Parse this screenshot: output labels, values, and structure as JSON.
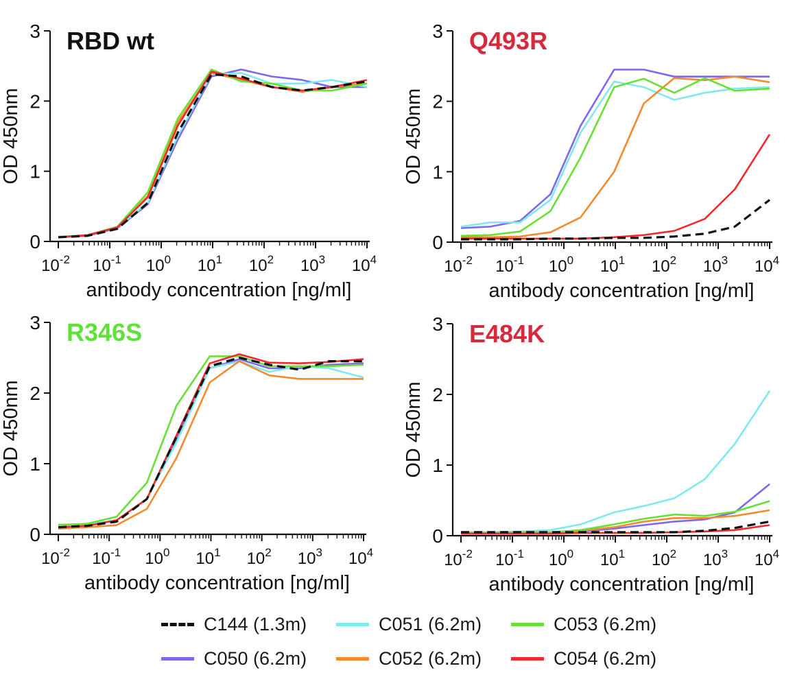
{
  "chart_data": [
    {
      "type": "line",
      "title": "RBD wt",
      "title_color": "#111111",
      "xlabel": "antibody concentration [ng/ml]",
      "ylabel": "OD 450nm",
      "x_scale": "log",
      "xlim_exp": [
        -2,
        4
      ],
      "ylim": [
        0,
        3
      ],
      "y_ticks": [
        "0",
        "1",
        "2",
        "3"
      ],
      "x_tick_labels": [
        {
          "base": "10",
          "exp": "-2"
        },
        {
          "base": "10",
          "exp": "-1"
        },
        {
          "base": "10",
          "exp": "0"
        },
        {
          "base": "10",
          "exp": "1"
        },
        {
          "base": "10",
          "exp": "2"
        },
        {
          "base": "10",
          "exp": "3"
        },
        {
          "base": "10",
          "exp": "4"
        }
      ],
      "x": [
        0.01,
        0.037,
        0.14,
        0.55,
        2.1,
        9.5,
        36,
        140,
        550,
        2100,
        10000
      ],
      "series": [
        {
          "name": "C050 (6.2m)",
          "values": [
            0.06,
            0.08,
            0.19,
            0.53,
            1.45,
            2.35,
            2.45,
            2.35,
            2.3,
            2.2,
            2.2
          ]
        },
        {
          "name": "C051 (6.2m)",
          "values": [
            0.07,
            0.09,
            0.2,
            0.55,
            1.5,
            2.38,
            2.4,
            2.25,
            2.25,
            2.3,
            2.2
          ]
        },
        {
          "name": "C052 (6.2m)",
          "values": [
            0.06,
            0.09,
            0.2,
            0.65,
            1.7,
            2.4,
            2.3,
            2.2,
            2.13,
            2.2,
            2.25
          ]
        },
        {
          "name": "C053 (6.2m)",
          "values": [
            0.06,
            0.09,
            0.21,
            0.7,
            1.75,
            2.45,
            2.28,
            2.25,
            2.15,
            2.15,
            2.25
          ]
        },
        {
          "name": "C054 (6.2m)",
          "values": [
            0.06,
            0.09,
            0.2,
            0.63,
            1.65,
            2.42,
            2.32,
            2.2,
            2.15,
            2.2,
            2.3
          ]
        },
        {
          "name": "C144 (1.3m)",
          "values": [
            0.06,
            0.08,
            0.18,
            0.55,
            1.55,
            2.38,
            2.35,
            2.2,
            2.15,
            2.2,
            2.28
          ]
        }
      ]
    },
    {
      "type": "line",
      "title": "Q493R",
      "title_color": "#d42a3c",
      "xlabel": "antibody concentration [ng/ml]",
      "ylabel": "OD 450nm",
      "x_scale": "log",
      "xlim_exp": [
        -2,
        4
      ],
      "ylim": [
        0,
        3
      ],
      "y_ticks": [
        "0",
        "1",
        "2",
        "3"
      ],
      "x_tick_labels": [
        {
          "base": "10",
          "exp": "-2"
        },
        {
          "base": "10",
          "exp": "-1"
        },
        {
          "base": "10",
          "exp": "0"
        },
        {
          "base": "10",
          "exp": "1"
        },
        {
          "base": "10",
          "exp": "2"
        },
        {
          "base": "10",
          "exp": "3"
        },
        {
          "base": "10",
          "exp": "4"
        }
      ],
      "x": [
        0.01,
        0.037,
        0.14,
        0.55,
        2.1,
        9.5,
        36,
        140,
        550,
        2100,
        10000
      ],
      "series": [
        {
          "name": "C050 (6.2m)",
          "values": [
            0.2,
            0.22,
            0.3,
            0.68,
            1.65,
            2.45,
            2.45,
            2.35,
            2.35,
            2.35,
            2.35
          ]
        },
        {
          "name": "C051 (6.2m)",
          "values": [
            0.22,
            0.28,
            0.28,
            0.6,
            1.55,
            2.28,
            2.2,
            2.02,
            2.12,
            2.18,
            2.2
          ]
        },
        {
          "name": "C052 (6.2m)",
          "values": [
            0.07,
            0.07,
            0.08,
            0.14,
            0.35,
            1.0,
            1.97,
            2.33,
            2.3,
            2.35,
            2.27
          ]
        },
        {
          "name": "C053 (6.2m)",
          "values": [
            0.09,
            0.1,
            0.15,
            0.44,
            1.2,
            2.2,
            2.32,
            2.12,
            2.33,
            2.15,
            2.18
          ]
        },
        {
          "name": "C054 (6.2m)",
          "values": [
            0.05,
            0.05,
            0.05,
            0.05,
            0.05,
            0.07,
            0.1,
            0.16,
            0.33,
            0.75,
            1.53
          ]
        },
        {
          "name": "C144 (1.3m)",
          "values": [
            0.04,
            0.04,
            0.04,
            0.05,
            0.05,
            0.06,
            0.06,
            0.08,
            0.12,
            0.22,
            0.6
          ]
        }
      ]
    },
    {
      "type": "line",
      "title": "R346S",
      "title_color": "#5ee23a",
      "xlabel": "antibody concentration [ng/ml]",
      "ylabel": "OD 450nm",
      "x_scale": "log",
      "xlim_exp": [
        -2,
        4
      ],
      "ylim": [
        0,
        3
      ],
      "y_ticks": [
        "0",
        "1",
        "2",
        "3"
      ],
      "x_tick_labels": [
        {
          "base": "10",
          "exp": "-2"
        },
        {
          "base": "10",
          "exp": "-1"
        },
        {
          "base": "10",
          "exp": "0"
        },
        {
          "base": "10",
          "exp": "1"
        },
        {
          "base": "10",
          "exp": "2"
        },
        {
          "base": "10",
          "exp": "3"
        },
        {
          "base": "10",
          "exp": "4"
        }
      ],
      "x": [
        0.01,
        0.037,
        0.14,
        0.55,
        2.1,
        9.5,
        36,
        140,
        550,
        2100,
        10000
      ],
      "series": [
        {
          "name": "C050 (6.2m)",
          "values": [
            0.1,
            0.12,
            0.2,
            0.5,
            1.35,
            2.35,
            2.48,
            2.35,
            2.35,
            2.4,
            2.42
          ]
        },
        {
          "name": "C051 (6.2m)",
          "values": [
            0.14,
            0.14,
            0.2,
            0.5,
            1.3,
            2.35,
            2.45,
            2.3,
            2.38,
            2.35,
            2.22
          ]
        },
        {
          "name": "C052 (6.2m)",
          "values": [
            0.08,
            0.1,
            0.13,
            0.36,
            1.08,
            2.15,
            2.45,
            2.25,
            2.2,
            2.2,
            2.2
          ]
        },
        {
          "name": "C053 (6.2m)",
          "values": [
            0.13,
            0.15,
            0.25,
            0.73,
            1.82,
            2.52,
            2.52,
            2.38,
            2.38,
            2.38,
            2.4
          ]
        },
        {
          "name": "C054 (6.2m)",
          "values": [
            0.1,
            0.12,
            0.2,
            0.5,
            1.4,
            2.42,
            2.55,
            2.43,
            2.42,
            2.44,
            2.48
          ]
        },
        {
          "name": "C144 (1.3m)",
          "values": [
            0.1,
            0.12,
            0.18,
            0.5,
            1.38,
            2.38,
            2.5,
            2.4,
            2.33,
            2.45,
            2.45
          ]
        }
      ]
    },
    {
      "type": "line",
      "title": "E484K",
      "title_color": "#d42a3c",
      "xlabel": "antibody concentration [ng/ml]",
      "ylabel": "OD 450nm",
      "x_scale": "log",
      "xlim_exp": [
        -2,
        4
      ],
      "ylim": [
        0,
        3
      ],
      "y_ticks": [
        "0",
        "1",
        "2",
        "3"
      ],
      "x_tick_labels": [
        {
          "base": "10",
          "exp": "-2"
        },
        {
          "base": "10",
          "exp": "-1"
        },
        {
          "base": "10",
          "exp": "0"
        },
        {
          "base": "10",
          "exp": "1"
        },
        {
          "base": "10",
          "exp": "2"
        },
        {
          "base": "10",
          "exp": "3"
        },
        {
          "base": "10",
          "exp": "4"
        }
      ],
      "x": [
        0.01,
        0.037,
        0.14,
        0.55,
        2.1,
        9.5,
        36,
        140,
        550,
        2100,
        10000
      ],
      "series": [
        {
          "name": "C050 (6.2m)",
          "values": [
            0.05,
            0.05,
            0.05,
            0.05,
            0.06,
            0.1,
            0.15,
            0.2,
            0.23,
            0.33,
            0.73
          ]
        },
        {
          "name": "C051 (6.2m)",
          "values": [
            0.05,
            0.05,
            0.06,
            0.08,
            0.16,
            0.33,
            0.42,
            0.53,
            0.8,
            1.3,
            2.05
          ]
        },
        {
          "name": "C052 (6.2m)",
          "values": [
            0.04,
            0.04,
            0.05,
            0.05,
            0.07,
            0.12,
            0.2,
            0.25,
            0.25,
            0.28,
            0.36
          ]
        },
        {
          "name": "C053 (6.2m)",
          "values": [
            0.04,
            0.04,
            0.05,
            0.05,
            0.08,
            0.16,
            0.24,
            0.3,
            0.28,
            0.34,
            0.49
          ]
        },
        {
          "name": "C054 (6.2m)",
          "values": [
            0.03,
            0.03,
            0.03,
            0.03,
            0.04,
            0.04,
            0.04,
            0.05,
            0.06,
            0.08,
            0.15
          ]
        },
        {
          "name": "C144 (1.3m)",
          "values": [
            0.05,
            0.05,
            0.05,
            0.05,
            0.05,
            0.05,
            0.05,
            0.05,
            0.07,
            0.11,
            0.2
          ]
        }
      ]
    }
  ],
  "series_styles": {
    "C144 (1.3m)": {
      "color": "#111111",
      "dashed": true
    },
    "C050 (6.2m)": {
      "color": "#7b68ee",
      "dashed": false
    },
    "C051 (6.2m)": {
      "color": "#7fe9f0",
      "dashed": false
    },
    "C052 (6.2m)": {
      "color": "#f28a2e",
      "dashed": false
    },
    "C053 (6.2m)": {
      "color": "#66e034",
      "dashed": false
    },
    "C054 (6.2m)": {
      "color": "#f2292b",
      "dashed": false
    }
  },
  "legend": {
    "placement": "bottom",
    "items": [
      {
        "label": "C144 (1.3m)",
        "color": "#111111",
        "dashed": true
      },
      {
        "label": "C051 (6.2m)",
        "color": "#7fe9f0",
        "dashed": false
      },
      {
        "label": "C053 (6.2m)",
        "color": "#66e034",
        "dashed": false
      },
      {
        "label": "C050 (6.2m)",
        "color": "#7b68ee",
        "dashed": false
      },
      {
        "label": "C052 (6.2m)",
        "color": "#f28a2e",
        "dashed": false
      },
      {
        "label": "C054 (6.2m)",
        "color": "#f2292b",
        "dashed": false
      }
    ]
  }
}
